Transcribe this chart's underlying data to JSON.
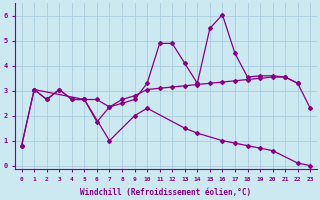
{
  "xlabel": "Windchill (Refroidissement éolien,°C)",
  "bg_color": "#cce8f0",
  "line_color": "#880088",
  "grid_color": "#aaccdd",
  "xlim": [
    -0.5,
    23.5
  ],
  "ylim": [
    -0.15,
    6.5
  ],
  "yticks": [
    0,
    1,
    2,
    3,
    4,
    5,
    6
  ],
  "xticks": [
    0,
    1,
    2,
    3,
    4,
    5,
    6,
    7,
    8,
    9,
    10,
    11,
    12,
    13,
    14,
    15,
    16,
    17,
    18,
    19,
    20,
    21,
    22,
    23
  ],
  "line1_x": [
    0,
    1,
    2,
    3,
    4,
    5,
    6,
    7,
    8,
    9,
    10,
    11,
    12,
    13,
    14,
    15,
    16,
    17,
    18,
    19,
    20,
    21,
    22,
    23
  ],
  "line1_y": [
    0.8,
    3.05,
    2.65,
    3.05,
    2.65,
    2.65,
    1.75,
    2.35,
    2.5,
    2.65,
    3.3,
    4.9,
    4.9,
    4.1,
    3.3,
    5.5,
    6.05,
    4.5,
    3.55,
    3.6,
    3.6,
    3.55,
    3.3,
    2.3
  ],
  "line2_x": [
    1,
    2,
    3,
    4,
    5,
    6,
    7,
    8,
    9,
    10,
    11,
    12,
    13,
    14,
    15,
    16,
    17,
    18,
    19,
    20,
    21,
    22
  ],
  "line2_y": [
    3.05,
    2.65,
    3.05,
    2.65,
    2.65,
    2.65,
    2.35,
    2.65,
    2.8,
    3.05,
    3.1,
    3.15,
    3.2,
    3.25,
    3.3,
    3.35,
    3.4,
    3.45,
    3.5,
    3.55,
    3.55,
    3.3
  ],
  "line3_x": [
    0,
    23
  ],
  "line3_y": [
    0.8,
    0.0
  ],
  "line3_x_pts": [
    0,
    1,
    5,
    7,
    9,
    10,
    13,
    14,
    16,
    17,
    18,
    19,
    20,
    22,
    23
  ],
  "line3_y_pts": [
    0.8,
    3.05,
    2.65,
    1.0,
    2.0,
    2.3,
    1.5,
    1.3,
    1.0,
    0.9,
    0.8,
    0.7,
    0.6,
    0.1,
    0.0
  ]
}
